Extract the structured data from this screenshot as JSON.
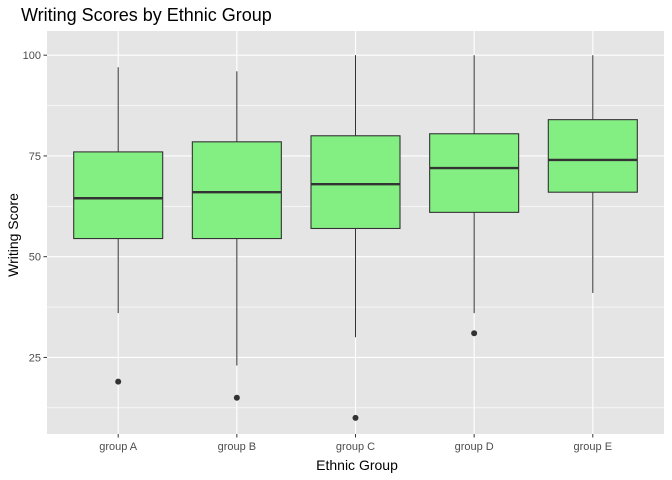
{
  "chart_data": {
    "type": "boxplot",
    "title": "Writing Scores by Ethnic Group",
    "xlabel": "Ethnic Group",
    "ylabel": "Writing Score",
    "categories": [
      "group A",
      "group B",
      "group C",
      "group D",
      "group E"
    ],
    "ylim": [
      6,
      106
    ],
    "yticks": [
      25,
      50,
      75,
      100
    ],
    "grid": true,
    "colors": {
      "panel": "#e5e5e5",
      "grid_major": "#ffffff",
      "box_fill": "#83ef83",
      "box_stroke": "#333333"
    },
    "boxes": [
      {
        "category": "group A",
        "lower_whisker": 36,
        "q1": 54.5,
        "median": 64.5,
        "q3": 76,
        "upper_whisker": 97,
        "outliers": [
          19
        ]
      },
      {
        "category": "group B",
        "lower_whisker": 23,
        "q1": 54.5,
        "median": 66,
        "q3": 78.5,
        "upper_whisker": 96,
        "outliers": [
          15
        ]
      },
      {
        "category": "group C",
        "lower_whisker": 30,
        "q1": 57,
        "median": 68,
        "q3": 80,
        "upper_whisker": 100,
        "outliers": [
          10
        ]
      },
      {
        "category": "group D",
        "lower_whisker": 36,
        "q1": 61,
        "median": 72,
        "q3": 80.5,
        "upper_whisker": 100,
        "outliers": [
          31
        ]
      },
      {
        "category": "group E",
        "lower_whisker": 41,
        "q1": 66,
        "median": 74,
        "q3": 84,
        "upper_whisker": 100,
        "outliers": []
      }
    ]
  }
}
